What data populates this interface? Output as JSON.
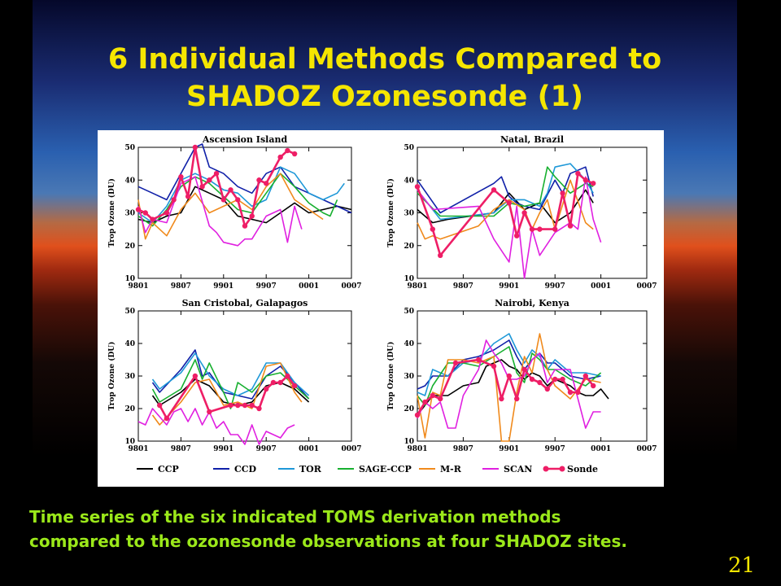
{
  "slide": {
    "title_line1": "6 Individual Methods Compared to",
    "title_line2": "SHADOZ Ozonesonde (1)",
    "caption_line1": "Time series of the six indicated TOMS derivation methods",
    "caption_line2": "compared to the ozonesonde observations at four SHADOZ sites.",
    "page_number": "21"
  },
  "colors": {
    "title": "#f5e600",
    "caption": "#9be81a",
    "sonde": "#ee1e66"
  },
  "legend": [
    {
      "label": "CCP",
      "color": "#000000"
    },
    {
      "label": "CCD",
      "color": "#1020a8"
    },
    {
      "label": "TOR",
      "color": "#1e98d8"
    },
    {
      "label": "SAGE-CCP",
      "color": "#18b030"
    },
    {
      "label": "M-R",
      "color": "#f08a1c"
    },
    {
      "label": "SCAN",
      "color": "#e020e0"
    },
    {
      "label": "Sonde",
      "color": "#ee1e66",
      "marker": "circle"
    }
  ],
  "chart_data": [
    {
      "type": "line",
      "title": "Ascension Island",
      "ylabel": "Trop Ozone (DU)",
      "ylim": [
        10,
        50
      ],
      "yticks": [
        "10",
        "20",
        "30",
        "40",
        "50"
      ],
      "xlim": [
        0,
        30
      ],
      "xticks": [
        "9801",
        "9807",
        "9901",
        "9907",
        "0001",
        "0007"
      ],
      "x_unit_note": "months from 9801",
      "series": [
        {
          "name": "CCP",
          "x": [
            0,
            2,
            4,
            6,
            8,
            10,
            12,
            14,
            16,
            18,
            20,
            22,
            24,
            26,
            28,
            30
          ],
          "values": [
            28,
            27,
            29,
            30,
            38,
            36,
            34,
            29,
            28,
            27,
            30,
            33,
            30,
            31,
            32,
            31
          ]
        },
        {
          "name": "CCD",
          "x": [
            0,
            2,
            4,
            6,
            8,
            9,
            10,
            12,
            14,
            16,
            18,
            20,
            22,
            24,
            26,
            28,
            30
          ],
          "values": [
            38,
            36,
            34,
            42,
            50,
            51,
            44,
            42,
            38,
            36,
            42,
            44,
            38,
            36,
            34,
            32,
            30
          ]
        },
        {
          "name": "TOR",
          "x": [
            0,
            2,
            4,
            6,
            8,
            10,
            12,
            14,
            16,
            18,
            20,
            22,
            24,
            26,
            28,
            29
          ],
          "values": [
            30,
            27,
            32,
            40,
            42,
            40,
            37,
            36,
            32,
            34,
            44,
            42,
            36,
            34,
            36,
            39
          ]
        },
        {
          "name": "SAGE-CCP",
          "x": [
            0,
            2,
            4,
            6,
            8,
            10,
            12,
            14,
            16,
            18,
            20,
            22,
            24,
            26,
            27,
            28
          ],
          "values": [
            29,
            26,
            31,
            38,
            41,
            39,
            35,
            31,
            30,
            36,
            42,
            38,
            33,
            30,
            29,
            34
          ]
        },
        {
          "name": "M-R",
          "x": [
            0,
            1,
            2,
            4,
            6,
            8,
            10,
            12,
            14,
            16,
            18,
            20,
            22,
            24,
            26
          ],
          "values": [
            34,
            22,
            27,
            23,
            31,
            36,
            30,
            32,
            34,
            31,
            38,
            42,
            34,
            31,
            28
          ]
        },
        {
          "name": "SCAN",
          "x": [
            0,
            1,
            2,
            4,
            6,
            8,
            10,
            11,
            12,
            14,
            15,
            16,
            18,
            20,
            21,
            22,
            23
          ],
          "values": [
            32,
            24,
            28,
            27,
            39,
            41,
            26,
            24,
            21,
            20,
            22,
            22,
            29,
            31,
            21,
            32,
            25
          ]
        },
        {
          "name": "Sonde",
          "x": [
            0,
            1,
            2,
            4,
            5,
            6,
            7,
            8,
            9,
            10,
            11,
            12,
            13,
            14,
            15,
            16,
            17,
            18,
            20,
            21,
            22
          ],
          "values": [
            31,
            30,
            28,
            30,
            34,
            41,
            35,
            50,
            38,
            40,
            42,
            34,
            37,
            34,
            26,
            29,
            40,
            39,
            47,
            49,
            48
          ]
        }
      ]
    },
    {
      "type": "line",
      "title": "Natal, Brazil",
      "ylabel": "Trop Ozone (DU)",
      "ylim": [
        10,
        50
      ],
      "yticks": [
        "10",
        "20",
        "30",
        "40",
        "50"
      ],
      "xlim": [
        0,
        30
      ],
      "xticks": [
        "9801",
        "9807",
        "9901",
        "9907",
        "0001",
        "0007"
      ],
      "x_unit_note": "months from 9801",
      "series": [
        {
          "name": "CCP",
          "x": [
            0,
            2,
            4,
            10,
            12,
            14,
            16,
            18,
            20,
            22,
            23
          ],
          "values": [
            31,
            27,
            28,
            30,
            36,
            31,
            33,
            27,
            30,
            37,
            33
          ]
        },
        {
          "name": "CCD",
          "x": [
            0,
            3,
            10,
            11,
            12,
            13,
            14,
            16,
            18,
            19,
            20,
            22,
            23
          ],
          "values": [
            40,
            30,
            39,
            41,
            35,
            33,
            32,
            31,
            40,
            36,
            42,
            44,
            35
          ]
        },
        {
          "name": "TOR",
          "x": [
            0,
            3,
            10,
            12,
            14,
            16,
            17,
            18,
            20,
            22,
            23
          ],
          "values": [
            37,
            28,
            30,
            34,
            34,
            32,
            36,
            44,
            45,
            40,
            36
          ]
        },
        {
          "name": "SAGE-CCP",
          "x": [
            0,
            3,
            10,
            12,
            14,
            16,
            17,
            18,
            20,
            22,
            23
          ],
          "values": [
            36,
            29,
            29,
            33,
            32,
            33,
            44,
            41,
            36,
            39,
            38
          ]
        },
        {
          "name": "M-R",
          "x": [
            0,
            1,
            2,
            3,
            8,
            10,
            12,
            14,
            15,
            16,
            17,
            18,
            20,
            22,
            23
          ],
          "values": [
            27,
            22,
            23,
            22,
            26,
            31,
            34,
            31,
            25,
            30,
            34,
            25,
            40,
            27,
            25
          ]
        },
        {
          "name": "SCAN",
          "x": [
            0,
            2,
            8,
            10,
            12,
            13,
            14,
            15,
            16,
            18,
            20,
            21,
            22,
            23,
            24
          ],
          "values": [
            37,
            31,
            32,
            22,
            15,
            32,
            10,
            25,
            17,
            24,
            27,
            25,
            41,
            28,
            21
          ]
        },
        {
          "name": "Sonde",
          "x": [
            0,
            2,
            3,
            10,
            12,
            13,
            14,
            15,
            16,
            18,
            19,
            20,
            21,
            22,
            23
          ],
          "values": [
            38,
            25,
            17,
            37,
            33,
            23,
            30,
            25,
            25,
            25,
            36,
            26,
            42,
            40,
            39
          ]
        }
      ]
    },
    {
      "type": "line",
      "title": "San Cristobal, Galapagos",
      "ylabel": "Trop Ozone (DU)",
      "ylim": [
        10,
        50
      ],
      "yticks": [
        "10",
        "20",
        "30",
        "40",
        "50"
      ],
      "xlim": [
        0,
        30
      ],
      "xticks": [
        "9801",
        "9807",
        "9901",
        "9907",
        "0001",
        "0007"
      ],
      "x_unit_note": "months from 9801",
      "series": [
        {
          "name": "CCP",
          "x": [
            2,
            3,
            6,
            8,
            10,
            12,
            14,
            16,
            18,
            20,
            22,
            24
          ],
          "values": [
            24,
            21,
            25,
            29,
            27,
            22,
            21,
            22,
            27,
            28,
            26,
            22
          ]
        },
        {
          "name": "CCD",
          "x": [
            2,
            3,
            6,
            8,
            9,
            10,
            12,
            14,
            16,
            18,
            20,
            22,
            24
          ],
          "values": [
            28,
            25,
            32,
            38,
            30,
            31,
            25,
            24,
            23,
            30,
            33,
            28,
            23
          ]
        },
        {
          "name": "TOR",
          "x": [
            2,
            3,
            6,
            8,
            10,
            12,
            14,
            16,
            18,
            20,
            22,
            24
          ],
          "values": [
            29,
            26,
            31,
            37,
            30,
            26,
            24,
            26,
            34,
            34,
            28,
            24
          ]
        },
        {
          "name": "SAGE-CCP",
          "x": [
            2,
            3,
            6,
            8,
            9,
            10,
            12,
            13,
            14,
            16,
            18,
            20,
            22,
            24
          ],
          "values": [
            26,
            22,
            26,
            35,
            29,
            34,
            25,
            20,
            28,
            25,
            30,
            31,
            27,
            23
          ]
        },
        {
          "name": "M-R",
          "x": [
            2,
            3,
            6,
            8,
            10,
            12,
            14,
            16,
            18,
            20,
            22,
            23
          ],
          "values": [
            18,
            15,
            22,
            28,
            29,
            21,
            22,
            20,
            33,
            34,
            25,
            22
          ]
        },
        {
          "name": "SCAN",
          "x": [
            0,
            1,
            2,
            4,
            5,
            6,
            7,
            8,
            9,
            10,
            11,
            12,
            13,
            14,
            15,
            16,
            17,
            18,
            20,
            21,
            22
          ],
          "values": [
            16,
            15,
            20,
            15,
            19,
            20,
            16,
            20,
            15,
            19,
            14,
            16,
            12,
            12,
            9,
            15,
            9,
            13,
            11,
            14,
            15
          ]
        },
        {
          "name": "Sonde",
          "x": [
            3,
            4,
            8,
            10,
            13,
            14,
            15,
            16,
            17,
            18,
            19,
            20,
            21,
            22
          ],
          "values": [
            21,
            17,
            30,
            19,
            21,
            21,
            21,
            21,
            20,
            26,
            28,
            28,
            30,
            27
          ]
        }
      ]
    },
    {
      "type": "line",
      "title": "Nairobi, Kenya",
      "ylabel": "Trop Ozone (DU)",
      "ylim": [
        10,
        50
      ],
      "yticks": [
        "10",
        "20",
        "30",
        "40",
        "50"
      ],
      "xlim": [
        0,
        30
      ],
      "xticks": [
        "9801",
        "9807",
        "9901",
        "9907",
        "0001",
        "0007"
      ],
      "x_unit_note": "months from 9801",
      "series": [
        {
          "name": "CCP",
          "x": [
            0,
            1,
            2,
            4,
            6,
            8,
            9,
            10,
            11,
            12,
            13,
            14,
            15,
            16,
            17,
            18,
            19,
            20,
            21,
            22,
            23,
            24,
            25
          ],
          "values": [
            18,
            21,
            24,
            24,
            27,
            28,
            33,
            34,
            35,
            33,
            32,
            29,
            31,
            30,
            27,
            29,
            28,
            27,
            25,
            24,
            24,
            26,
            23
          ]
        },
        {
          "name": "CCD",
          "x": [
            0,
            1,
            2,
            4,
            6,
            8,
            10,
            12,
            13,
            14,
            15,
            16,
            17,
            18,
            20,
            22,
            24
          ],
          "values": [
            26,
            27,
            30,
            30,
            35,
            36,
            38,
            41,
            36,
            32,
            35,
            37,
            34,
            34,
            30,
            29,
            30
          ]
        },
        {
          "name": "TOR",
          "x": [
            0,
            1,
            2,
            4,
            6,
            8,
            10,
            12,
            13,
            14,
            15,
            16,
            17,
            18,
            20,
            22,
            24
          ],
          "values": [
            25,
            24,
            32,
            30,
            34,
            35,
            40,
            43,
            38,
            34,
            38,
            36,
            32,
            35,
            31,
            31,
            30
          ]
        },
        {
          "name": "SAGE-CCP",
          "x": [
            0,
            1,
            2,
            4,
            6,
            8,
            10,
            12,
            13,
            14,
            15,
            16,
            17,
            18,
            20,
            22,
            24
          ],
          "values": [
            24,
            21,
            27,
            34,
            34,
            33,
            36,
            39,
            31,
            28,
            37,
            35,
            32,
            32,
            29,
            27,
            31
          ]
        },
        {
          "name": "M-R",
          "x": [
            0,
            1,
            2,
            3,
            4,
            6,
            8,
            10,
            11,
            12,
            13,
            14,
            15,
            16,
            17,
            18,
            20,
            22,
            24
          ],
          "values": [
            24,
            11,
            25,
            24,
            35,
            35,
            34,
            36,
            10,
            10,
            25,
            36,
            31,
            43,
            32,
            27,
            23,
            29,
            28
          ]
        },
        {
          "name": "SCAN",
          "x": [
            0,
            1,
            2,
            3,
            4,
            5,
            6,
            7,
            8,
            9,
            10,
            11,
            12,
            13,
            14,
            15,
            16,
            17,
            18,
            20,
            22,
            23,
            24
          ],
          "values": [
            17,
            22,
            20,
            22,
            14,
            14,
            24,
            28,
            32,
            41,
            37,
            34,
            29,
            29,
            30,
            35,
            37,
            28,
            32,
            32,
            14,
            19,
            19
          ]
        },
        {
          "name": "Sonde",
          "x": [
            0,
            1,
            2,
            3,
            5,
            8,
            10,
            11,
            12,
            13,
            14,
            15,
            16,
            17,
            18,
            19,
            20,
            21,
            22,
            23
          ],
          "values": [
            18,
            22,
            24,
            23,
            34,
            35,
            33,
            23,
            30,
            23,
            32,
            29,
            28,
            26,
            29,
            29,
            25,
            25,
            30,
            27
          ]
        }
      ]
    }
  ]
}
